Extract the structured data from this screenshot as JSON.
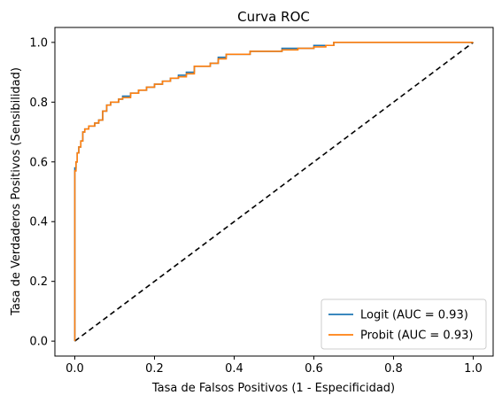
{
  "chart_data": {
    "type": "line",
    "title": "Curva ROC",
    "xlabel": "Tasa de Falsos Positivos (1 - Especificidad)",
    "ylabel": "Tasa de Verdaderos Positivos (Sensibilidad)",
    "xlim": [
      -0.05,
      1.05
    ],
    "ylim": [
      -0.05,
      1.05
    ],
    "xticks": [
      "0.0",
      "0.2",
      "0.4",
      "0.6",
      "0.8",
      "1.0"
    ],
    "yticks": [
      "0.0",
      "0.2",
      "0.4",
      "0.6",
      "0.8",
      "1.0"
    ],
    "grid": false,
    "legend_position": "bottom-right",
    "series": [
      {
        "name": "Logit (AUC = 0.93)",
        "color": "#1f77b4",
        "x": [
          0.0,
          0.0,
          0.003,
          0.006,
          0.01,
          0.015,
          0.02,
          0.025,
          0.035,
          0.05,
          0.06,
          0.07,
          0.08,
          0.09,
          0.1,
          0.11,
          0.12,
          0.14,
          0.16,
          0.18,
          0.2,
          0.22,
          0.24,
          0.26,
          0.28,
          0.3,
          0.32,
          0.34,
          0.36,
          0.38,
          0.4,
          0.44,
          0.48,
          0.52,
          0.56,
          0.6,
          0.63,
          0.65,
          0.7,
          0.75,
          0.8,
          0.9,
          1.0
        ],
        "y": [
          0.0,
          0.58,
          0.6,
          0.63,
          0.65,
          0.67,
          0.7,
          0.71,
          0.72,
          0.73,
          0.74,
          0.77,
          0.79,
          0.8,
          0.8,
          0.81,
          0.82,
          0.83,
          0.84,
          0.85,
          0.86,
          0.87,
          0.88,
          0.89,
          0.9,
          0.92,
          0.92,
          0.93,
          0.95,
          0.96,
          0.96,
          0.97,
          0.97,
          0.98,
          0.98,
          0.99,
          0.99,
          1.0,
          1.0,
          1.0,
          1.0,
          1.0,
          1.0
        ]
      },
      {
        "name": "Probit (AUC = 0.93)",
        "color": "#ff7f0e",
        "x": [
          0.0,
          0.0,
          0.003,
          0.006,
          0.01,
          0.015,
          0.02,
          0.025,
          0.035,
          0.05,
          0.06,
          0.07,
          0.08,
          0.09,
          0.1,
          0.11,
          0.12,
          0.14,
          0.16,
          0.18,
          0.2,
          0.22,
          0.24,
          0.26,
          0.28,
          0.3,
          0.32,
          0.34,
          0.36,
          0.38,
          0.4,
          0.44,
          0.48,
          0.52,
          0.56,
          0.6,
          0.63,
          0.65,
          0.7,
          0.75,
          0.8,
          0.9,
          1.0
        ],
        "y": [
          0.0,
          0.57,
          0.6,
          0.63,
          0.65,
          0.67,
          0.7,
          0.71,
          0.72,
          0.73,
          0.74,
          0.77,
          0.79,
          0.8,
          0.8,
          0.81,
          0.815,
          0.83,
          0.84,
          0.85,
          0.86,
          0.87,
          0.88,
          0.885,
          0.895,
          0.92,
          0.92,
          0.93,
          0.945,
          0.96,
          0.96,
          0.97,
          0.97,
          0.975,
          0.98,
          0.985,
          0.99,
          1.0,
          1.0,
          1.0,
          1.0,
          1.0,
          1.0
        ]
      },
      {
        "name": "",
        "style": "dashed",
        "color": "#000000",
        "x": [
          0,
          1
        ],
        "y": [
          0,
          1
        ]
      }
    ]
  }
}
